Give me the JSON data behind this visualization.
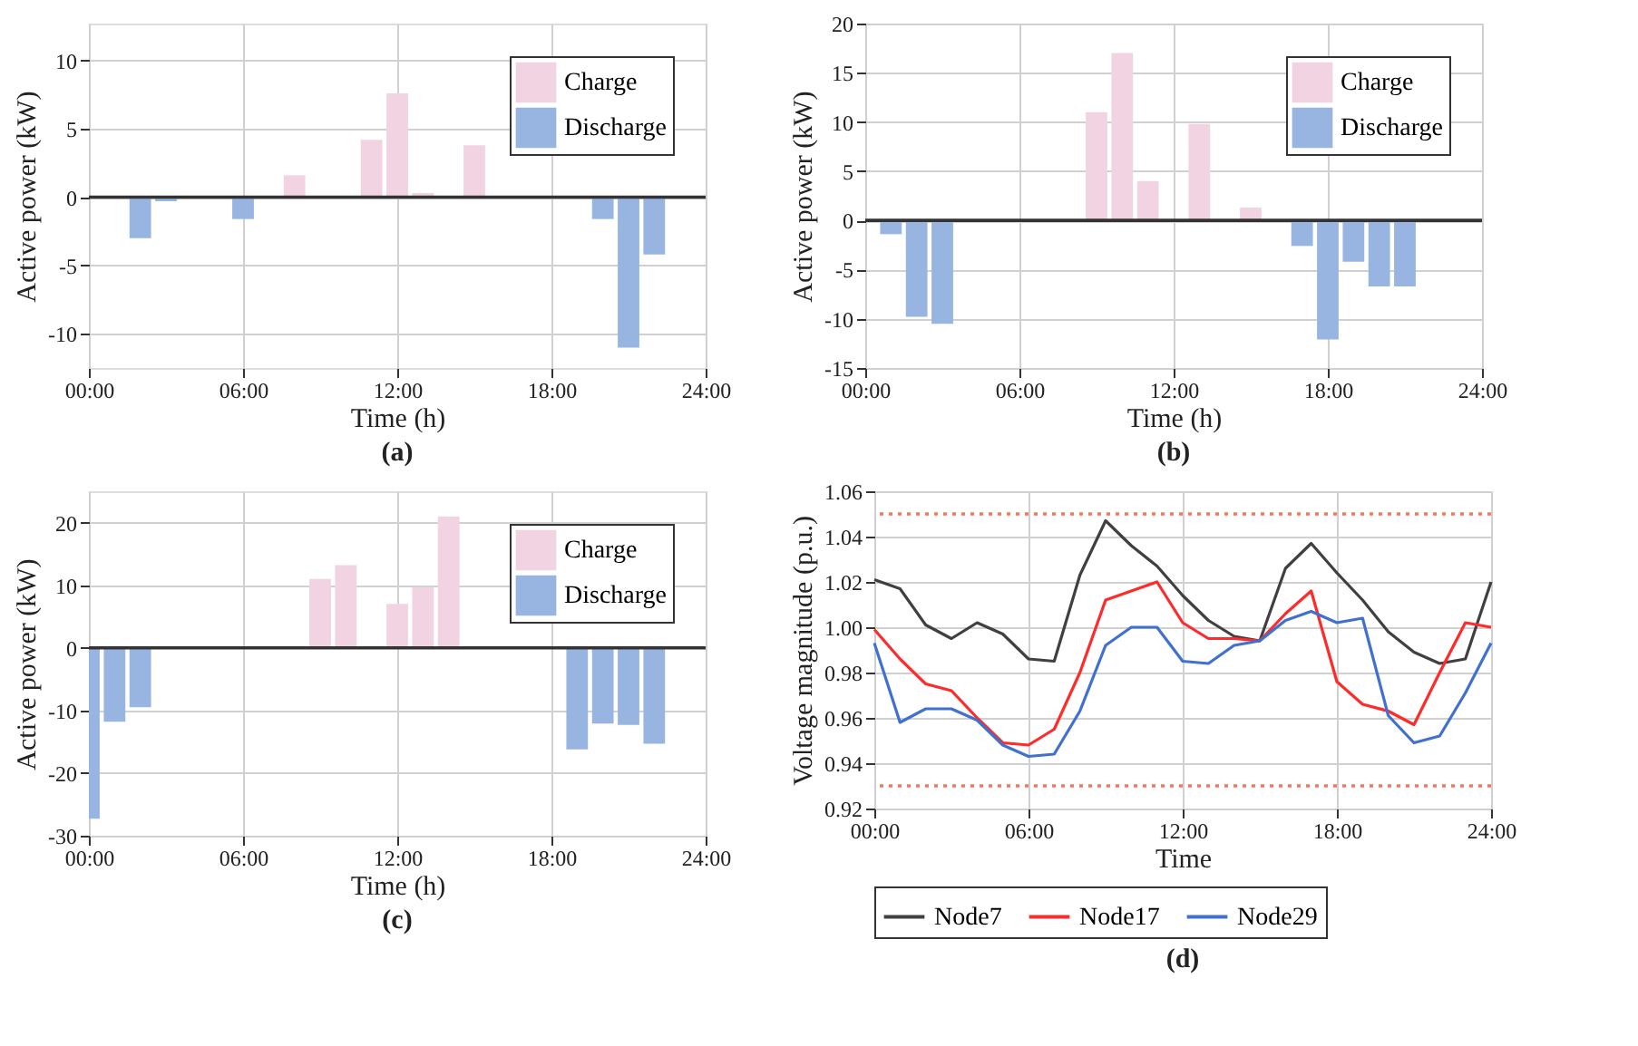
{
  "chart_data": [
    {
      "type": "bar",
      "xlabel": "Time (h)",
      "ylabel": "Active power (kW)",
      "annotations": [
        "(a)"
      ],
      "xlim": [
        0,
        24
      ],
      "xticks": [
        {
          "value": 0,
          "label": "00:00"
        },
        {
          "value": 6,
          "label": "06:00"
        },
        {
          "value": 12,
          "label": "12:00"
        },
        {
          "value": 18,
          "label": "18:00"
        },
        {
          "value": 24,
          "label": "24:00"
        }
      ],
      "ylim": [
        -12.5,
        12.7
      ],
      "yticks": [
        -10,
        -5,
        0,
        5,
        10
      ],
      "grid": true,
      "legend": "top right",
      "ref_lines": [
        {
          "axis": "y",
          "value": 0,
          "color": "#333333"
        }
      ],
      "series": [
        {
          "name": "Charge",
          "color": "#f2d3e2",
          "x": [
            8,
            11,
            12,
            13,
            15
          ],
          "values": [
            1.6,
            4.2,
            7.6,
            0.3,
            3.8
          ]
        },
        {
          "name": "Discharge",
          "color": "#97b5e0",
          "x": [
            2,
            3,
            6,
            20,
            21,
            22
          ],
          "values": [
            -3.0,
            -0.3,
            -1.6,
            -1.6,
            -11.0,
            -4.2
          ]
        }
      ]
    },
    {
      "type": "bar",
      "xlabel": "Time (h)",
      "ylabel": "Active power (kW)",
      "annotations": [
        "(b)"
      ],
      "xlim": [
        0,
        24
      ],
      "xticks": [
        {
          "value": 0,
          "label": "00:00"
        },
        {
          "value": 6,
          "label": "06:00"
        },
        {
          "value": 12,
          "label": "12:00"
        },
        {
          "value": 18,
          "label": "18:00"
        },
        {
          "value": 24,
          "label": "24:00"
        }
      ],
      "ylim": [
        -15,
        20
      ],
      "yticks": [
        -15,
        -10,
        -5,
        0,
        5,
        10,
        15,
        20
      ],
      "grid": true,
      "legend": "top right",
      "ref_lines": [
        {
          "axis": "y",
          "value": 0,
          "color": "#333333"
        }
      ],
      "series": [
        {
          "name": "Charge",
          "color": "#f2d3e2",
          "x": [
            9,
            10,
            11,
            13,
            15
          ],
          "values": [
            11,
            17,
            4,
            9.8,
            1.3
          ]
        },
        {
          "name": "Discharge",
          "color": "#97b5e0",
          "x": [
            1,
            2,
            3,
            17,
            18,
            19,
            20,
            21
          ],
          "values": [
            -1.4,
            -9.8,
            -10.5,
            -2.6,
            -12.1,
            -4.2,
            -6.7,
            -6.7
          ]
        }
      ]
    },
    {
      "type": "bar",
      "xlabel": "Time (h)",
      "ylabel": "Active power (kW)",
      "annotations": [
        "(c)"
      ],
      "xlim": [
        0,
        24
      ],
      "xticks": [
        {
          "value": 0,
          "label": "00:00"
        },
        {
          "value": 6,
          "label": "06:00"
        },
        {
          "value": 12,
          "label": "12:00"
        },
        {
          "value": 18,
          "label": "18:00"
        },
        {
          "value": 24,
          "label": "24:00"
        }
      ],
      "ylim": [
        -30,
        25
      ],
      "yticks": [
        -30,
        -20,
        -10,
        0,
        10,
        20
      ],
      "grid": true,
      "legend": "top right",
      "ref_lines": [
        {
          "axis": "y",
          "value": 0,
          "color": "#333333"
        }
      ],
      "series": [
        {
          "name": "Charge",
          "color": "#f2d3e2",
          "x": [
            9,
            10,
            12,
            13,
            14
          ],
          "values": [
            11,
            13.2,
            7,
            9.7,
            21
          ]
        },
        {
          "name": "Discharge",
          "color": "#97b5e0",
          "x": [
            0,
            1,
            2,
            19,
            20,
            21,
            22
          ],
          "values": [
            -27.3,
            -11.8,
            -9.5,
            -16.2,
            -12.1,
            -12.3,
            -15.3
          ]
        }
      ]
    },
    {
      "type": "line",
      "xlabel": "Time",
      "ylabel": "Voltage magnitude (p.u.)",
      "annotations": [
        "(d)"
      ],
      "x": [
        0,
        1,
        2,
        3,
        4,
        5,
        6,
        7,
        8,
        9,
        10,
        11,
        12,
        13,
        14,
        15,
        16,
        17,
        18,
        19,
        20,
        21,
        22,
        23,
        24
      ],
      "xlim": [
        0,
        24
      ],
      "xticks": [
        {
          "value": 0,
          "label": "00:00"
        },
        {
          "value": 6,
          "label": "06:00"
        },
        {
          "value": 12,
          "label": "12:00"
        },
        {
          "value": 18,
          "label": "18:00"
        },
        {
          "value": 24,
          "label": "24:00"
        }
      ],
      "ylim": [
        0.92,
        1.06
      ],
      "yticks": [
        0.92,
        0.94,
        0.96,
        0.98,
        {
          "value": 1,
          "label": "1.00"
        },
        1.02,
        1.04,
        1.06
      ],
      "grid": true,
      "legend": "bottom",
      "line_style": "solid",
      "marker": "none",
      "ref_lines": [
        {
          "axis": "y",
          "value": 1.05,
          "color": "#f07a5a",
          "line_style": "dotted"
        },
        {
          "axis": "y",
          "value": 0.93,
          "color": "#f07a5a",
          "line_style": "dotted"
        }
      ],
      "series": [
        {
          "name": "Node7",
          "color": "#404040",
          "values": [
            1.021,
            1.017,
            1.001,
            0.995,
            1.002,
            0.997,
            0.986,
            0.985,
            1.023,
            1.047,
            1.036,
            1.027,
            1.014,
            1.003,
            0.996,
            0.994,
            1.026,
            1.037,
            1.024,
            1.012,
            0.998,
            0.989,
            0.984,
            0.986,
            1.02
          ]
        },
        {
          "name": "Node17",
          "color": "#ff2a2a",
          "values": [
            0.999,
            0.986,
            0.975,
            0.972,
            0.96,
            0.949,
            0.948,
            0.955,
            0.98,
            1.012,
            1.016,
            1.02,
            1.002,
            0.995,
            0.995,
            0.994,
            1.006,
            1.016,
            0.976,
            0.966,
            0.963,
            0.957,
            0.98,
            1.002,
            1.0
          ]
        },
        {
          "name": "Node29",
          "color": "#4070d0",
          "values": [
            0.993,
            0.958,
            0.964,
            0.964,
            0.959,
            0.948,
            0.943,
            0.944,
            0.963,
            0.992,
            1.0,
            1.0,
            0.985,
            0.984,
            0.992,
            0.994,
            1.003,
            1.007,
            1.002,
            1.004,
            0.961,
            0.949,
            0.952,
            0.971,
            0.993
          ]
        }
      ]
    }
  ]
}
